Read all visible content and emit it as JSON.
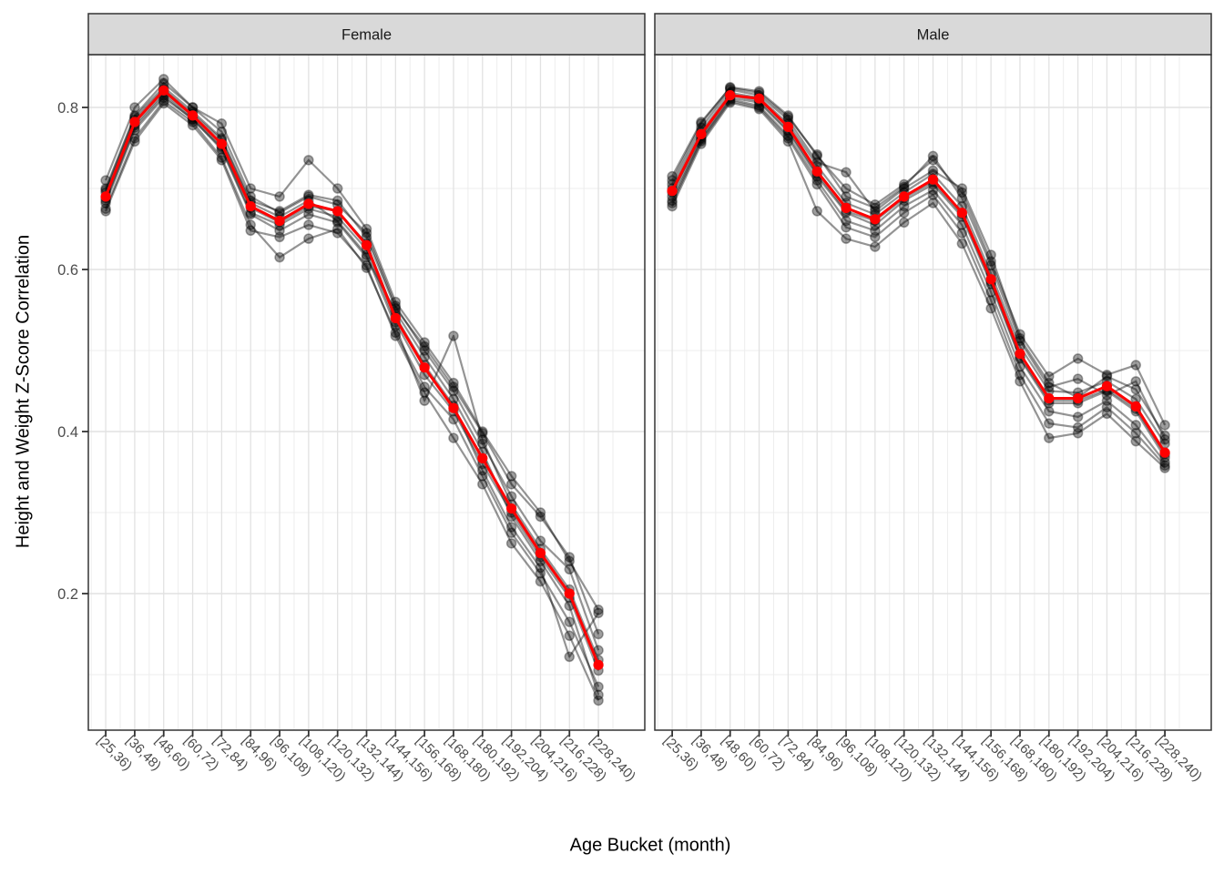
{
  "chart_data": {
    "type": "line",
    "title": "",
    "xlabel": "Age Bucket (month)",
    "ylabel": "Height and Weight Z-Score Correlation",
    "ylim": [
      0.03,
      0.865
    ],
    "yticks": [
      0.2,
      0.4,
      0.6,
      0.8
    ],
    "ytick_labels": [
      "0.2",
      "0.4",
      "0.6",
      "0.8"
    ],
    "grid": "major-and-minor",
    "legend": "none",
    "categories": [
      "[25,36)",
      "[36,48)",
      "[48,60)",
      "[60,72)",
      "[72,84)",
      "[84,96)",
      "[96,108)",
      "[108,120)",
      "[120,132)",
      "[132,144)",
      "[144,156)",
      "[156,168)",
      "[168,180)",
      "[180,192)",
      "[192,204)",
      "[204,216)",
      "[216,228)",
      "[228,240)"
    ],
    "facets": [
      {
        "label": "Female",
        "mean_series": {
          "name": "mean",
          "values": [
            0.69,
            0.782,
            0.821,
            0.79,
            0.755,
            0.678,
            0.66,
            0.681,
            0.672,
            0.63,
            0.54,
            0.479,
            0.429,
            0.367,
            0.305,
            0.25,
            0.2,
            0.112
          ]
        },
        "member_series": [
          {
            "name": "member-1",
            "values": [
              0.7,
              0.79,
              0.83,
              0.8,
              0.77,
              0.69,
              0.67,
              0.69,
              0.68,
              0.645,
              0.555,
              0.5,
              0.45,
              0.385,
              0.32,
              0.265,
              0.23,
              0.13
            ]
          },
          {
            "name": "member-2",
            "values": [
              0.685,
              0.775,
              0.815,
              0.785,
              0.75,
              0.67,
              0.655,
              0.675,
              0.665,
              0.625,
              0.535,
              0.47,
              0.425,
              0.36,
              0.3,
              0.245,
              0.195,
              0.105
            ]
          },
          {
            "name": "member-3",
            "values": [
              0.71,
              0.8,
              0.835,
              0.8,
              0.78,
              0.7,
              0.69,
              0.735,
              0.7,
              0.65,
              0.56,
              0.51,
              0.46,
              0.4,
              0.345,
              0.3,
              0.24,
              0.18
            ]
          },
          {
            "name": "member-4",
            "values": [
              0.675,
              0.762,
              0.808,
              0.782,
              0.738,
              0.655,
              0.615,
              0.638,
              0.65,
              0.602,
              0.522,
              0.455,
              0.415,
              0.345,
              0.275,
              0.225,
              0.165,
              0.085
            ]
          },
          {
            "name": "member-5",
            "values": [
              0.695,
              0.785,
              0.822,
              0.792,
              0.76,
              0.682,
              0.665,
              0.685,
              0.66,
              0.618,
              0.53,
              0.438,
              0.518,
              0.39,
              0.31,
              0.255,
              0.205,
              0.118
            ]
          },
          {
            "name": "member-6",
            "values": [
              0.688,
              0.778,
              0.818,
              0.788,
              0.752,
              0.676,
              0.658,
              0.678,
              0.672,
              0.632,
              0.542,
              0.482,
              0.432,
              0.352,
              0.282,
              0.232,
              0.122,
              0.176
            ]
          },
          {
            "name": "member-7",
            "values": [
              0.682,
              0.772,
              0.812,
              0.786,
              0.748,
              0.668,
              0.648,
              0.668,
              0.658,
              0.615,
              0.548,
              0.492,
              0.44,
              0.375,
              0.295,
              0.24,
              0.185,
              0.075
            ]
          },
          {
            "name": "member-8",
            "values": [
              0.698,
              0.788,
              0.825,
              0.795,
              0.762,
              0.685,
              0.672,
              0.692,
              0.685,
              0.64,
              0.552,
              0.505,
              0.455,
              0.398,
              0.335,
              0.295,
              0.245,
              0.15
            ]
          },
          {
            "name": "member-9",
            "values": [
              0.672,
              0.758,
              0.805,
              0.778,
              0.735,
              0.648,
              0.64,
              0.655,
              0.645,
              0.605,
              0.518,
              0.448,
              0.392,
              0.335,
              0.262,
              0.215,
              0.148,
              0.068
            ]
          }
        ]
      },
      {
        "label": "Male",
        "mean_series": {
          "name": "mean",
          "values": [
            0.697,
            0.767,
            0.815,
            0.811,
            0.776,
            0.721,
            0.676,
            0.662,
            0.69,
            0.711,
            0.67,
            0.588,
            0.496,
            0.441,
            0.441,
            0.456,
            0.431,
            0.374
          ]
        },
        "member_series": [
          {
            "name": "member-1",
            "values": [
              0.71,
              0.78,
              0.825,
              0.82,
              0.79,
              0.74,
              0.7,
              0.68,
              0.705,
              0.735,
              0.695,
              0.61,
              0.52,
              0.468,
              0.49,
              0.47,
              0.482,
              0.408
            ]
          },
          {
            "name": "member-2",
            "values": [
              0.69,
              0.762,
              0.812,
              0.806,
              0.77,
              0.715,
              0.67,
              0.655,
              0.685,
              0.705,
              0.665,
              0.582,
              0.49,
              0.435,
              0.435,
              0.45,
              0.425,
              0.368
            ]
          },
          {
            "name": "member-3",
            "values": [
              0.7,
              0.77,
              0.818,
              0.812,
              0.78,
              0.728,
              0.682,
              0.668,
              0.695,
              0.718,
              0.678,
              0.595,
              0.505,
              0.45,
              0.448,
              0.462,
              0.44,
              0.385
            ]
          },
          {
            "name": "member-4",
            "values": [
              0.678,
              0.755,
              0.806,
              0.798,
              0.758,
              0.672,
              0.638,
              0.628,
              0.658,
              0.682,
              0.632,
              0.552,
              0.462,
              0.392,
              0.398,
              0.422,
              0.388,
              0.355
            ]
          },
          {
            "name": "member-5",
            "values": [
              0.705,
              0.775,
              0.822,
              0.815,
              0.785,
              0.732,
              0.72,
              0.672,
              0.7,
              0.722,
              0.7,
              0.618,
              0.515,
              0.46,
              0.442,
              0.468,
              0.452,
              0.395
            ]
          },
          {
            "name": "member-6",
            "values": [
              0.695,
              0.765,
              0.815,
              0.808,
              0.772,
              0.718,
              0.672,
              0.66,
              0.688,
              0.708,
              0.668,
              0.585,
              0.492,
              0.438,
              0.438,
              0.452,
              0.428,
              0.372
            ]
          },
          {
            "name": "member-7",
            "values": [
              0.685,
              0.76,
              0.81,
              0.802,
              0.765,
              0.71,
              0.66,
              0.648,
              0.678,
              0.698,
              0.655,
              0.572,
              0.48,
              0.425,
              0.418,
              0.438,
              0.408,
              0.362
            ]
          },
          {
            "name": "member-8",
            "values": [
              0.715,
              0.782,
              0.824,
              0.818,
              0.788,
              0.742,
              0.69,
              0.676,
              0.702,
              0.74,
              0.688,
              0.605,
              0.512,
              0.455,
              0.465,
              0.445,
              0.462,
              0.39
            ]
          },
          {
            "name": "member-9",
            "values": [
              0.682,
              0.758,
              0.808,
              0.8,
              0.762,
              0.705,
              0.652,
              0.64,
              0.67,
              0.692,
              0.645,
              0.562,
              0.47,
              0.41,
              0.405,
              0.43,
              0.398,
              0.358
            ]
          }
        ]
      }
    ],
    "colors": {
      "mean_line": "#FF0000",
      "member_line": "rgba(0,0,0,0.42)",
      "member_point_fill": "rgba(0,0,0,0.38)",
      "member_point_edge": "rgba(0,0,0,0.35)",
      "strip_bg": "#D9D9D9",
      "strip_text": "#1A1A1A",
      "panel_border": "#333333",
      "panel_bg": "#FFFFFF",
      "grid_major": "#E2E2E2",
      "grid_minor": "#EDEDED",
      "axis_text": "#4D4D4D",
      "tick_mark": "#333333"
    }
  }
}
